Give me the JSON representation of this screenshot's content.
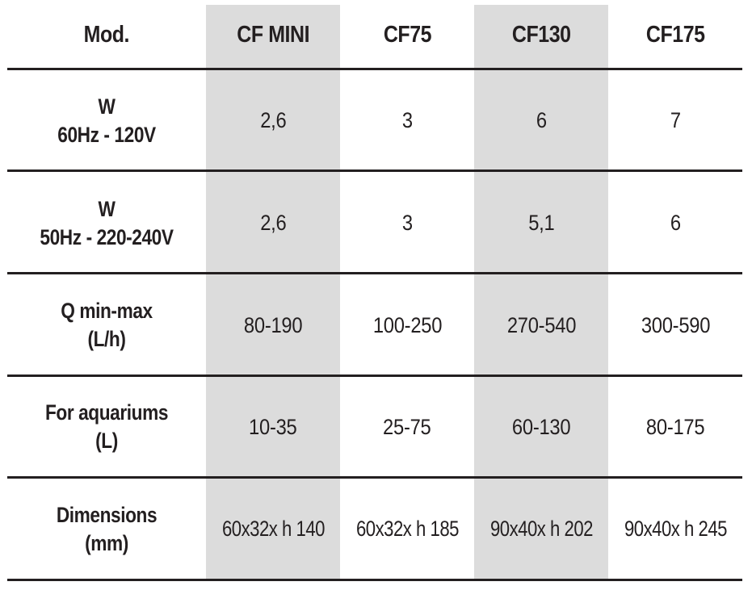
{
  "table": {
    "header": {
      "label": "Mod.",
      "models": [
        "CF MINI",
        "CF75",
        "CF130",
        "CF175"
      ]
    },
    "rows": [
      {
        "label_lines": [
          "W",
          "60Hz - 120V"
        ],
        "values": [
          "2,6",
          "3",
          "6",
          "7"
        ]
      },
      {
        "label_lines": [
          "W",
          "50Hz - 220-240V"
        ],
        "values": [
          "2,6",
          "3",
          "5,1",
          "6"
        ]
      },
      {
        "label_lines": [
          "Q min-max",
          "(L/h)"
        ],
        "values": [
          "80-190",
          "100-250",
          "270-540",
          "300-590"
        ]
      },
      {
        "label_lines": [
          "For aquariums",
          "(L)"
        ],
        "values": [
          "10-35",
          "25-75",
          "60-130",
          "80-175"
        ]
      },
      {
        "label_lines": [
          "Dimensions",
          "(mm)"
        ],
        "values": [
          "60x32x h 140",
          "60x32x h 185",
          "90x40x h 202",
          "90x40x h 245"
        ]
      }
    ],
    "colors": {
      "highlight_column": "#dcdcdc",
      "rule": "#231f20",
      "text": "#231f20"
    }
  }
}
